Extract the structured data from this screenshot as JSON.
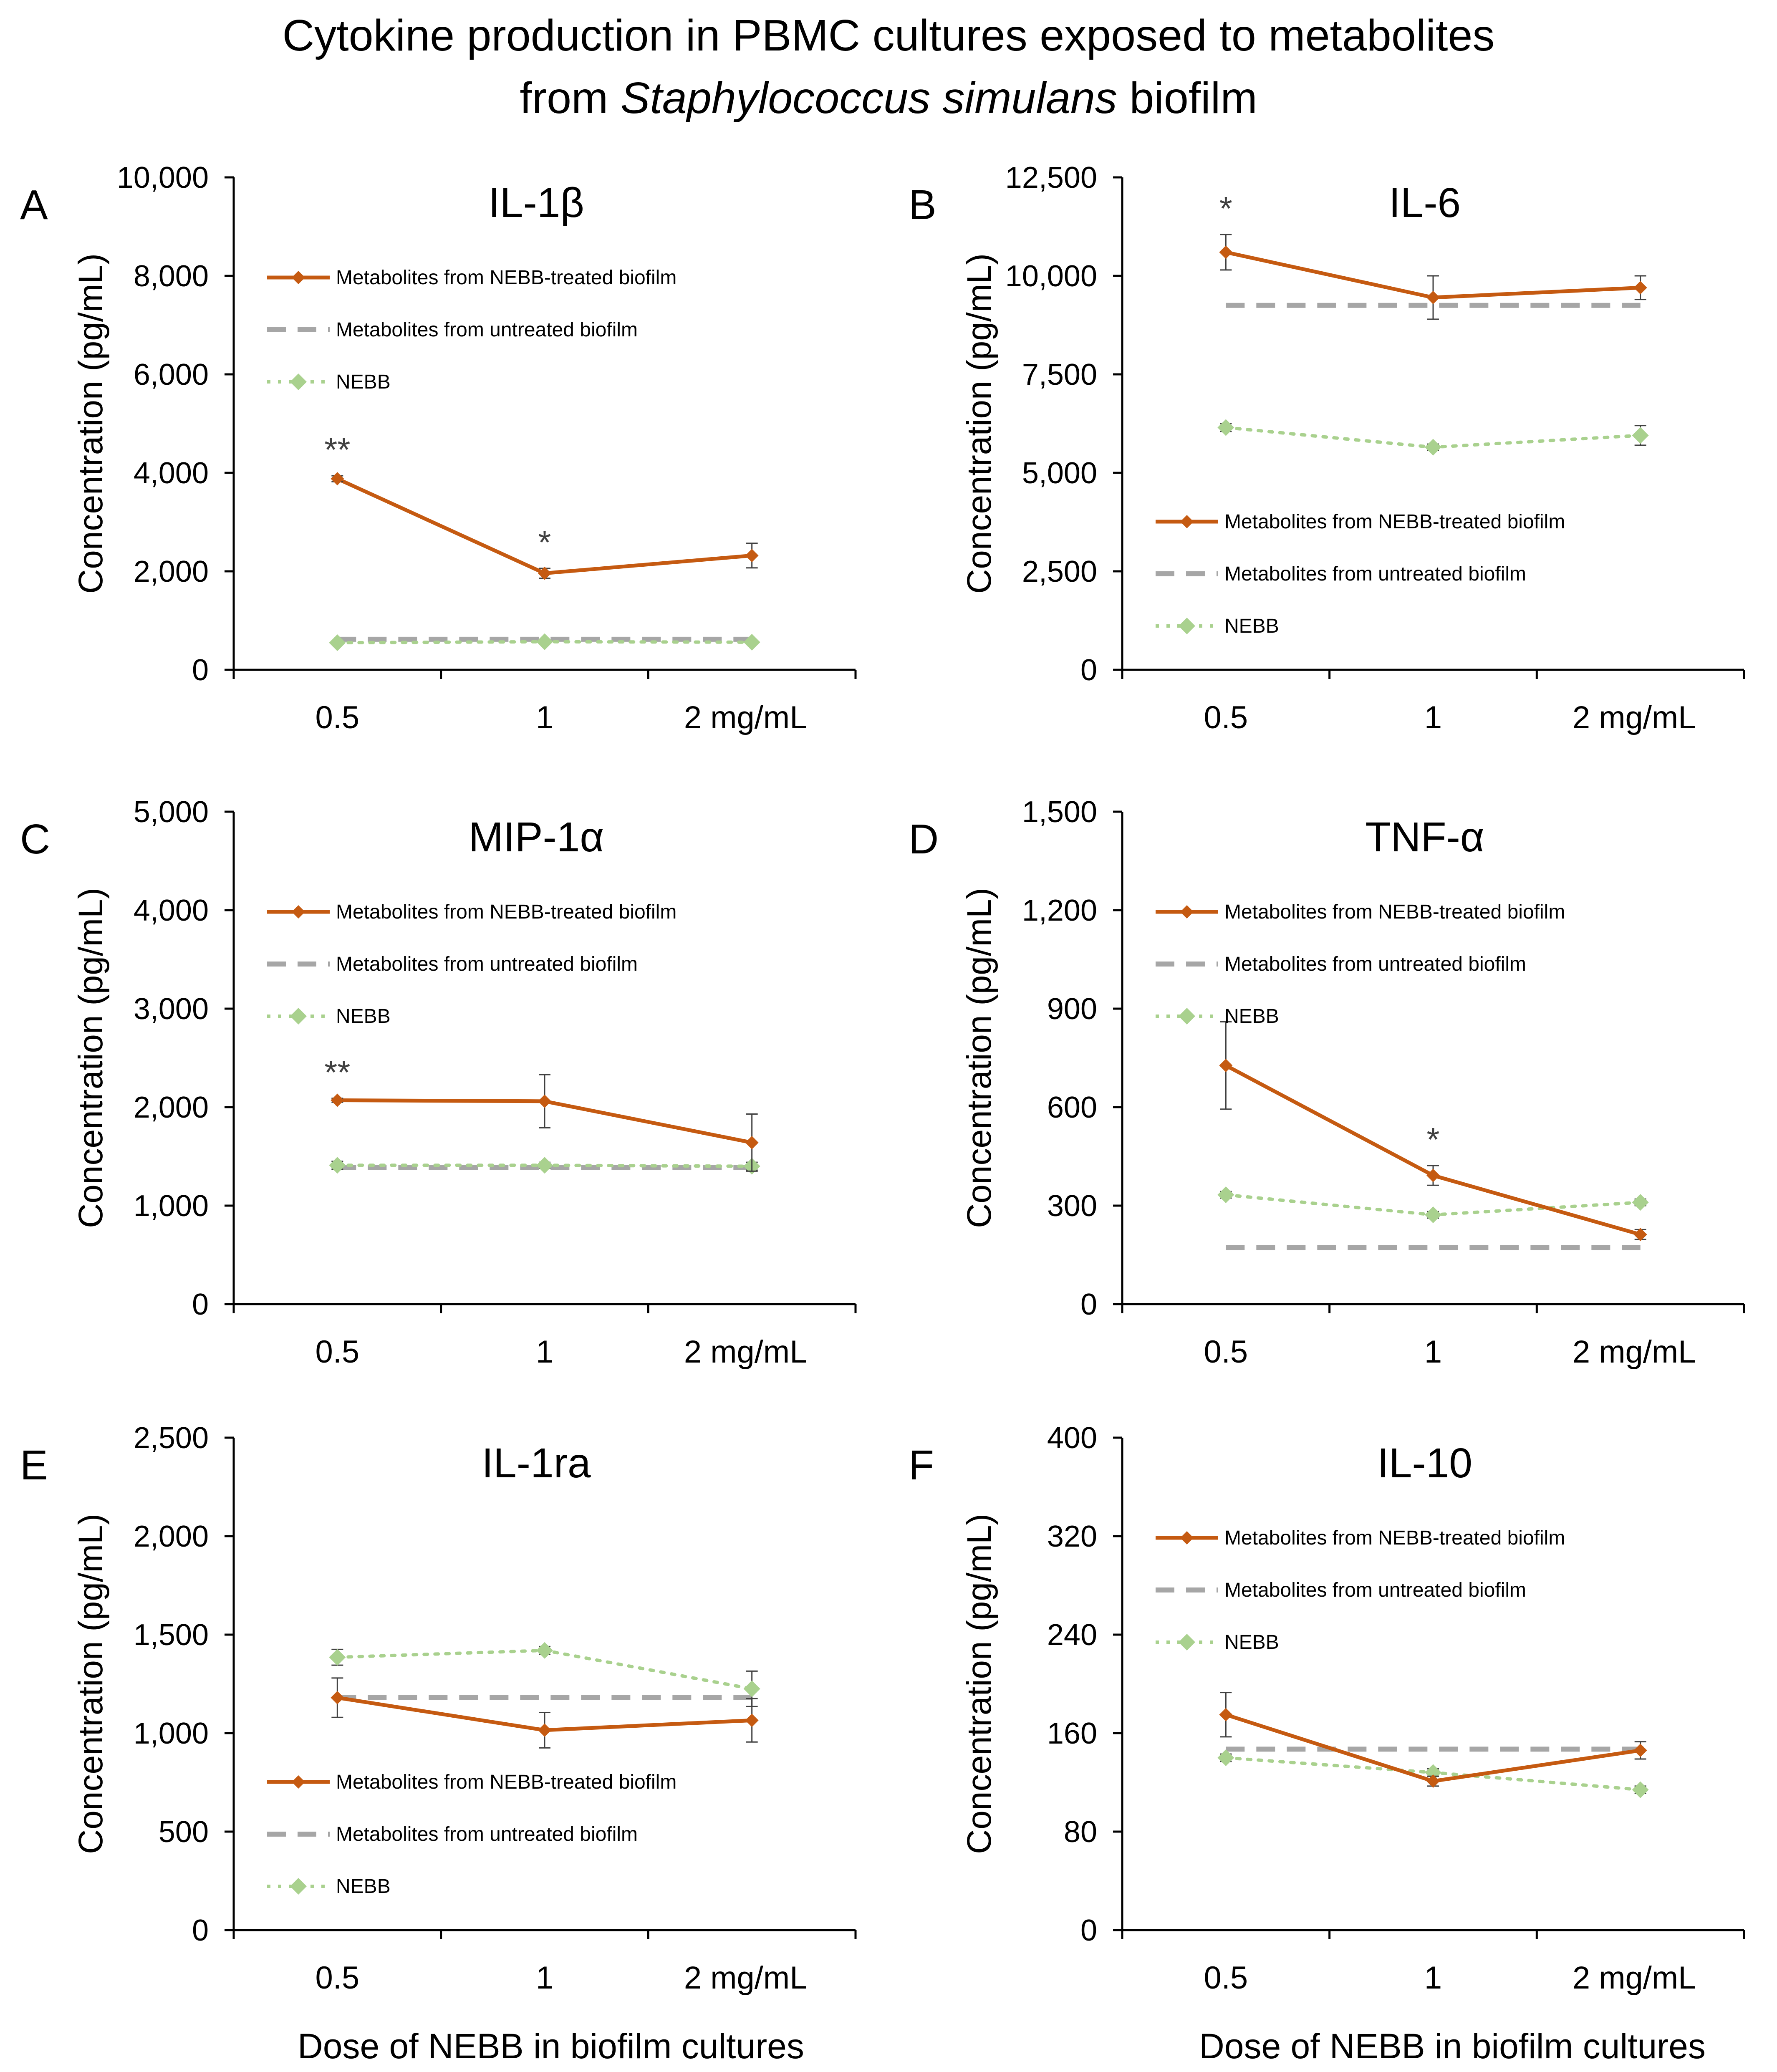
{
  "figure": {
    "title_line1": "Cytokine production in PBMC cultures exposed to metabolites",
    "title_line2_prefix": "from ",
    "title_line2_italic": "Staphylococcus simulans",
    "title_line2_suffix": " biofilm",
    "x_axis_title": "Dose of NEBB in biofilm cultures"
  },
  "colors": {
    "treated": "#C55A11",
    "untreated": "#A6A6A6",
    "nebb": "#A9D18E",
    "error": "#404040"
  },
  "chart_data": [
    {
      "type": "line",
      "panel": "A",
      "title": "IL-1β",
      "ylabel": "Concentration (pg/mL)",
      "categories": [
        "0.5",
        "1",
        "2 mg/mL"
      ],
      "ylim": [
        0,
        10000
      ],
      "yticks": [
        "0",
        "2,000",
        "4,000",
        "6,000",
        "8,000",
        "10,000"
      ],
      "legend_position": "top-left",
      "series": [
        {
          "name": "Metabolites from NEBB-treated biofilm",
          "values": [
            3880,
            1960,
            2320
          ],
          "errors": [
            60,
            100,
            250
          ]
        },
        {
          "name": "Metabolites from untreated biofilm",
          "values": [
            620,
            620,
            620
          ],
          "errors": [
            0,
            0,
            0
          ]
        },
        {
          "name": "NEBB",
          "values": [
            550,
            570,
            560
          ],
          "errors": [
            30,
            30,
            30
          ]
        }
      ],
      "annotations": [
        {
          "category": "0.5",
          "text": "**"
        },
        {
          "category": "1",
          "text": "*"
        }
      ]
    },
    {
      "type": "line",
      "panel": "B",
      "title": "IL-6",
      "ylabel": "Concentration (pg/mL)",
      "categories": [
        "0.5",
        "1",
        "2 mg/mL"
      ],
      "ylim": [
        0,
        12500
      ],
      "yticks": [
        "0",
        "2,500",
        "5,000",
        "7,500",
        "10,000",
        "12,500"
      ],
      "legend_position": "bottom-left",
      "series": [
        {
          "name": "Metabolites from NEBB-treated biofilm",
          "values": [
            10600,
            9450,
            9700
          ],
          "errors": [
            450,
            550,
            300
          ]
        },
        {
          "name": "Metabolites from untreated biofilm",
          "values": [
            9250,
            9250,
            9250
          ],
          "errors": [
            0,
            0,
            0
          ]
        },
        {
          "name": "NEBB",
          "values": [
            6150,
            5650,
            5950
          ],
          "errors": [
            100,
            80,
            250
          ]
        }
      ],
      "annotations": [
        {
          "category": "0.5",
          "text": "*"
        }
      ]
    },
    {
      "type": "line",
      "panel": "C",
      "title": "MIP-1α",
      "ylabel": "Concentration (pg/mL)",
      "categories": [
        "0.5",
        "1",
        "2 mg/mL"
      ],
      "ylim": [
        0,
        5000
      ],
      "yticks": [
        "0",
        "1,000",
        "2,000",
        "3,000",
        "4,000",
        "5,000"
      ],
      "legend_position": "top-left",
      "series": [
        {
          "name": "Metabolites from NEBB-treated biofilm",
          "values": [
            2070,
            2060,
            1640
          ],
          "errors": [
            20,
            270,
            290
          ]
        },
        {
          "name": "Metabolites from untreated biofilm",
          "values": [
            1390,
            1390,
            1390
          ],
          "errors": [
            0,
            0,
            0
          ]
        },
        {
          "name": "NEBB",
          "values": [
            1410,
            1410,
            1400
          ],
          "errors": [
            40,
            30,
            40
          ]
        }
      ],
      "annotations": [
        {
          "category": "0.5",
          "text": "**"
        }
      ]
    },
    {
      "type": "line",
      "panel": "D",
      "title": "TNF-α",
      "ylabel": "Concentration (pg/mL)",
      "categories": [
        "0.5",
        "1",
        "2 mg/mL"
      ],
      "ylim": [
        0,
        1500
      ],
      "yticks": [
        "0",
        "300",
        "600",
        "900",
        "1,200",
        "1,500"
      ],
      "legend_position": "top-left",
      "series": [
        {
          "name": "Metabolites from NEBB-treated biofilm",
          "values": [
            727,
            392,
            212
          ],
          "errors": [
            133,
            30,
            15
          ]
        },
        {
          "name": "Metabolites from untreated biofilm",
          "values": [
            172,
            172,
            172
          ],
          "errors": [
            0,
            0,
            0
          ]
        },
        {
          "name": "NEBB",
          "values": [
            333,
            272,
            310
          ],
          "errors": [
            10,
            10,
            10
          ]
        }
      ],
      "annotations": [
        {
          "category": "1",
          "text": "*"
        }
      ]
    },
    {
      "type": "line",
      "panel": "E",
      "title": "IL-1ra",
      "ylabel": "Concentration (pg/mL)",
      "categories": [
        "0.5",
        "1",
        "2 mg/mL"
      ],
      "ylim": [
        0,
        2500
      ],
      "yticks": [
        "0",
        "500",
        "1,000",
        "1,500",
        "2,000",
        "2,500"
      ],
      "legend_position": "bottom-left",
      "series": [
        {
          "name": "Metabolites from NEBB-treated biofilm",
          "values": [
            1180,
            1015,
            1065
          ],
          "errors": [
            100,
            90,
            110
          ]
        },
        {
          "name": "Metabolites from untreated biofilm",
          "values": [
            1180,
            1180,
            1180
          ],
          "errors": [
            0,
            0,
            0
          ]
        },
        {
          "name": "NEBB",
          "values": [
            1385,
            1420,
            1225
          ],
          "errors": [
            40,
            20,
            90
          ]
        }
      ],
      "annotations": []
    },
    {
      "type": "line",
      "panel": "F",
      "title": "IL-10",
      "ylabel": "Concentration (pg/mL)",
      "categories": [
        "0.5",
        "1",
        "2 mg/mL"
      ],
      "ylim": [
        0,
        400
      ],
      "yticks": [
        "0",
        "80",
        "160",
        "240",
        "320",
        "400"
      ],
      "legend_position": "top-left",
      "series": [
        {
          "name": "Metabolites from NEBB-treated biofilm",
          "values": [
            175,
            121,
            146
          ],
          "errors": [
            18,
            4,
            7
          ]
        },
        {
          "name": "Metabolites from untreated biofilm",
          "values": [
            147,
            147,
            147
          ],
          "errors": [
            0,
            0,
            0
          ]
        },
        {
          "name": "NEBB",
          "values": [
            140,
            128,
            114
          ],
          "errors": [
            3,
            3,
            3
          ]
        }
      ],
      "annotations": []
    }
  ]
}
